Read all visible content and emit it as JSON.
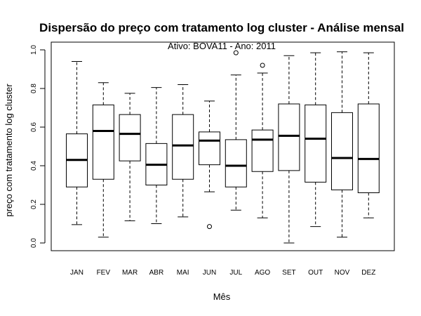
{
  "chart_data": {
    "type": "boxplot",
    "title": "Dispersão do  preço com tratamento log cluster  - Análise mensal",
    "subtitle": "Ativo: BOVA11 - Ano: 2011",
    "xlabel": "Mês",
    "ylabel": "preço com tratamento log cluster",
    "ylim": [
      -0.04,
      1.04
    ],
    "yticks": [
      0.0,
      0.2,
      0.4,
      0.6,
      0.8,
      1.0
    ],
    "ytick_labels": [
      "0.0",
      "0.2",
      "0.4",
      "0.6",
      "0.8",
      "1.0"
    ],
    "categories": [
      "JAN",
      "FEV",
      "MAR",
      "ABR",
      "MAI",
      "JUN",
      "JUL",
      "AGO",
      "SET",
      "OUT",
      "NOV",
      "DEZ"
    ],
    "boxes": [
      {
        "whisker_low": 0.095,
        "q1": 0.29,
        "median": 0.43,
        "q3": 0.565,
        "whisker_high": 0.94,
        "outliers": []
      },
      {
        "whisker_low": 0.03,
        "q1": 0.33,
        "median": 0.58,
        "q3": 0.715,
        "whisker_high": 0.83,
        "outliers": []
      },
      {
        "whisker_low": 0.115,
        "q1": 0.425,
        "median": 0.565,
        "q3": 0.665,
        "whisker_high": 0.775,
        "outliers": []
      },
      {
        "whisker_low": 0.1,
        "q1": 0.3,
        "median": 0.405,
        "q3": 0.515,
        "whisker_high": 0.805,
        "outliers": []
      },
      {
        "whisker_low": 0.135,
        "q1": 0.33,
        "median": 0.505,
        "q3": 0.665,
        "whisker_high": 0.82,
        "outliers": []
      },
      {
        "whisker_low": 0.265,
        "q1": 0.405,
        "median": 0.53,
        "q3": 0.575,
        "whisker_high": 0.735,
        "outliers": [
          0.085
        ]
      },
      {
        "whisker_low": 0.17,
        "q1": 0.29,
        "median": 0.4,
        "q3": 0.535,
        "whisker_high": 0.87,
        "outliers": [
          0.985
        ]
      },
      {
        "whisker_low": 0.13,
        "q1": 0.37,
        "median": 0.535,
        "q3": 0.585,
        "whisker_high": 0.88,
        "outliers": [
          0.92
        ]
      },
      {
        "whisker_low": 0.0,
        "q1": 0.375,
        "median": 0.555,
        "q3": 0.72,
        "whisker_high": 0.97,
        "outliers": []
      },
      {
        "whisker_low": 0.085,
        "q1": 0.315,
        "median": 0.54,
        "q3": 0.715,
        "whisker_high": 0.985,
        "outliers": []
      },
      {
        "whisker_low": 0.03,
        "q1": 0.275,
        "median": 0.44,
        "q3": 0.675,
        "whisker_high": 0.99,
        "outliers": []
      },
      {
        "whisker_low": 0.13,
        "q1": 0.26,
        "median": 0.435,
        "q3": 0.72,
        "whisker_high": 0.985,
        "outliers": []
      }
    ],
    "grid": false,
    "legend": "none"
  }
}
